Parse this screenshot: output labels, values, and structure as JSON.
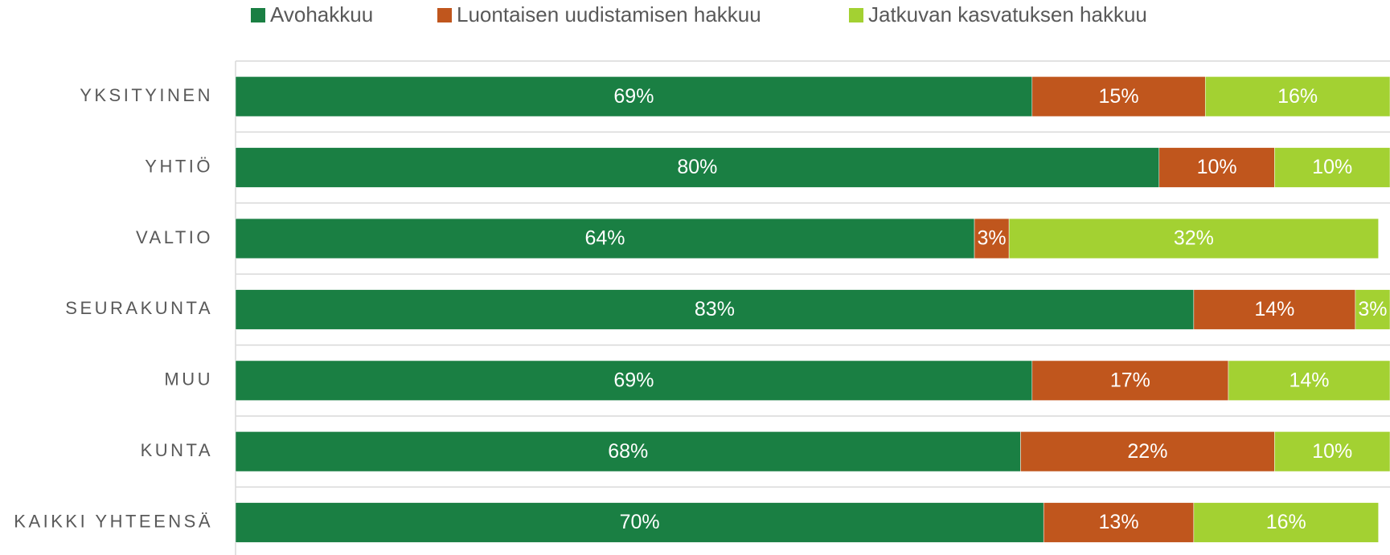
{
  "chart_data": {
    "type": "stacked-bar-horizontal",
    "categories": [
      "YKSITYINEN",
      "YHTIÖ",
      "VALTIO",
      "SEURAKUNTA",
      "MUU",
      "KUNTA",
      "KAIKKI YHTEENSÄ"
    ],
    "series": [
      {
        "name": "Avohakkuu",
        "color": "#1a7f43",
        "values": [
          69,
          80,
          64,
          83,
          69,
          68,
          70
        ],
        "value_labels": [
          "69%",
          "80%",
          "64%",
          "83%",
          "69%",
          "68%",
          "70%"
        ]
      },
      {
        "name": "Luontaisen uudistamisen hakkuu",
        "color": "#c0561d",
        "values": [
          15,
          10,
          3,
          14,
          17,
          22,
          13
        ],
        "value_labels": [
          "15%",
          "10%",
          "3%",
          "14%",
          "17%",
          "22%",
          "13%"
        ]
      },
      {
        "name": "Jatkuvan kasvatuksen hakkuu",
        "color": "#a3d132",
        "values": [
          16,
          10,
          32,
          3,
          14,
          10,
          16
        ],
        "value_labels": [
          "16%",
          "10%",
          "32%",
          "3%",
          "14%",
          "10%",
          "16%"
        ]
      }
    ],
    "xlim": [
      0,
      100
    ],
    "legend": "top"
  }
}
